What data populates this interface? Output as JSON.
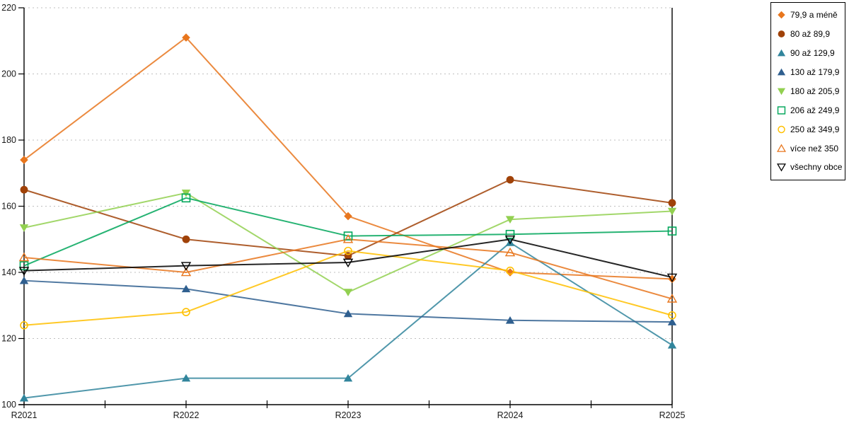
{
  "chart_data": {
    "type": "line",
    "title": "",
    "xlabel": "",
    "ylabel": "",
    "x_labels": [
      "R2021",
      "R2022",
      "R2023",
      "R2024",
      "R2025"
    ],
    "y_ticks": [
      100,
      120,
      140,
      160,
      180,
      200,
      220
    ],
    "ylim": [
      100,
      220
    ],
    "grid": "horizontal-dashed",
    "legend_position": "top-right-outside",
    "axis_color": "#000000",
    "grid_color": "#bfbfbf",
    "tick_label_color": "#1a1a1a",
    "series": [
      {
        "name": "79,9 a méně",
        "marker": "diamond-filled",
        "color": "#E8761D",
        "values": [
          174,
          211,
          157,
          140,
          138
        ]
      },
      {
        "name": "80 až 89,9",
        "marker": "circle-filled",
        "color": "#A04208",
        "values": [
          165,
          150,
          145,
          168,
          161
        ]
      },
      {
        "name": "90 až 129,9",
        "marker": "triangle-up-filled",
        "color": "#31859C",
        "values": [
          102,
          108,
          108,
          149,
          118
        ]
      },
      {
        "name": "130 až 179,9",
        "marker": "triangle-up-filled",
        "color": "#2F5F8F",
        "values": [
          137.5,
          135,
          127.5,
          125.5,
          125
        ]
      },
      {
        "name": "180 až 205,9",
        "marker": "triangle-down-filled",
        "color": "#92D050",
        "values": [
          153.5,
          164,
          134,
          156,
          158.5
        ]
      },
      {
        "name": "206 až 249,9",
        "marker": "square-open",
        "color": "#00A65A",
        "values": [
          142,
          162.5,
          151,
          151.5,
          152.5
        ]
      },
      {
        "name": "250 až 349,9",
        "marker": "circle-open",
        "color": "#FFC000",
        "values": [
          124,
          128,
          146.5,
          140.5,
          127
        ]
      },
      {
        "name": "více než 350",
        "marker": "triangle-up-open",
        "color": "#E8761D",
        "values": [
          144.5,
          140,
          150,
          146,
          132
        ]
      },
      {
        "name": "všechny obce",
        "marker": "triangle-down-open",
        "color": "#000000",
        "values": [
          140.5,
          142,
          143,
          150,
          138.5
        ]
      }
    ]
  }
}
